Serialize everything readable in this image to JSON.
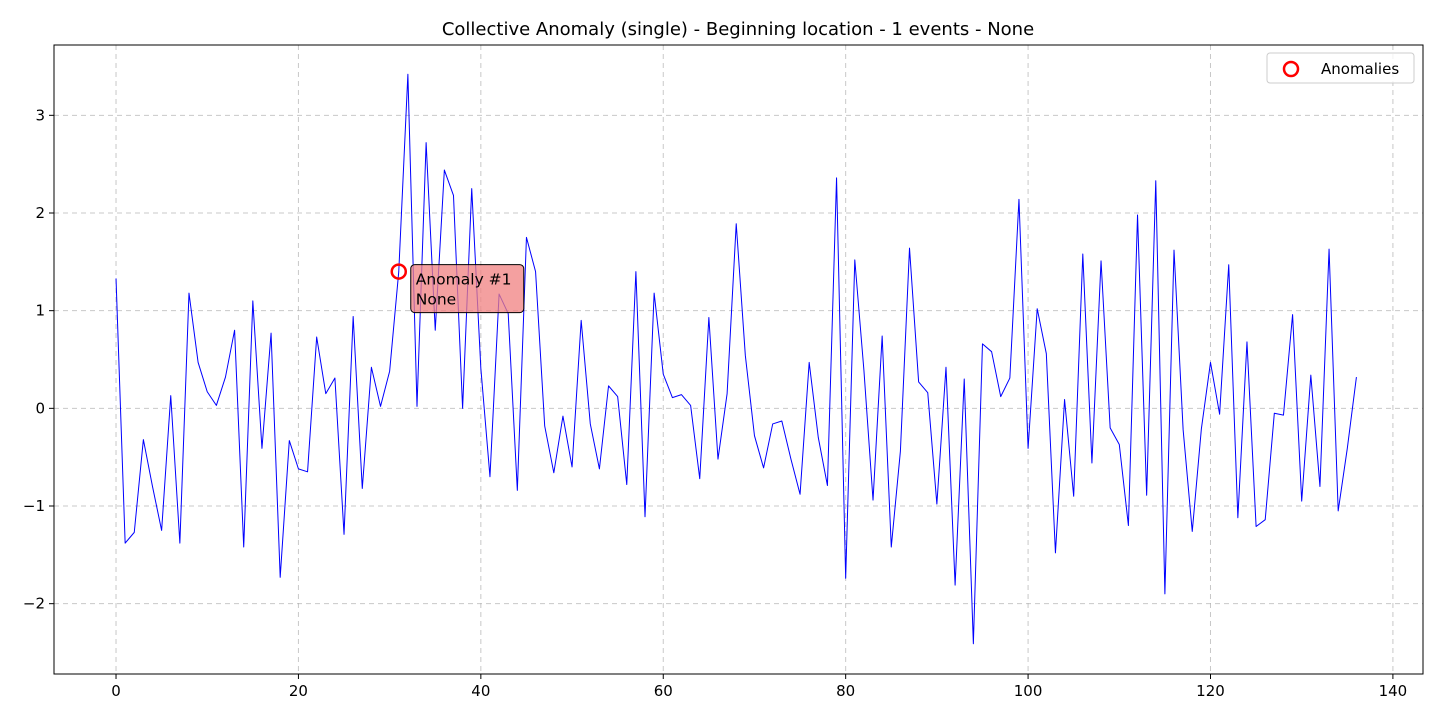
{
  "chart_data": {
    "type": "line",
    "title": "Collective Anomaly (single) - Beginning location - 1 events - None",
    "xlabel": "",
    "ylabel": "",
    "xlim": [
      -6.8,
      143.3
    ],
    "ylim": [
      -2.72,
      3.72
    ],
    "xticks": [
      0,
      20,
      40,
      60,
      80,
      100,
      120,
      140
    ],
    "yticks": [
      -2,
      -1,
      0,
      1,
      2,
      3
    ],
    "xtick_labels": [
      "0",
      "20",
      "40",
      "60",
      "80",
      "100",
      "120",
      "140"
    ],
    "ytick_labels": [
      "−2",
      "−1",
      "0",
      "1",
      "2",
      "3"
    ],
    "grid": true,
    "legend_position": "top-right",
    "series": [
      {
        "color": "#0000ff",
        "x": [
          0,
          1,
          2,
          3,
          4,
          5,
          6,
          7,
          8,
          9,
          10,
          11,
          12,
          13,
          14,
          15,
          16,
          17,
          18,
          19,
          20,
          21,
          22,
          23,
          24,
          25,
          26,
          27,
          28,
          29,
          30,
          31,
          32,
          33,
          34,
          35,
          36,
          37,
          38,
          39,
          40,
          41,
          42,
          43,
          44,
          45,
          46,
          47,
          48,
          49,
          50,
          51,
          52,
          53,
          54,
          55,
          56,
          57,
          58,
          59,
          60,
          61,
          62,
          63,
          64,
          65,
          66,
          67,
          68,
          69,
          70,
          71,
          72,
          73,
          74,
          75,
          76,
          77,
          78,
          79,
          80,
          81,
          82,
          83,
          84,
          85,
          86,
          87,
          88,
          89,
          90,
          91,
          92,
          93,
          94,
          95,
          96,
          97,
          98,
          99,
          100,
          101,
          102,
          103,
          104,
          105,
          106,
          107,
          108,
          109,
          110,
          111,
          112,
          113,
          114,
          115,
          116,
          117,
          118,
          119,
          120,
          121,
          122,
          123,
          124,
          125,
          126,
          127,
          128,
          129,
          130,
          131,
          132,
          133,
          134,
          135,
          136
        ],
        "values": [
          1.33,
          -1.38,
          -1.27,
          -0.32,
          -0.8,
          -1.25,
          0.13,
          -1.38,
          1.18,
          0.47,
          0.17,
          0.03,
          0.32,
          0.8,
          -1.42,
          1.1,
          -0.41,
          0.77,
          -1.73,
          -0.33,
          -0.62,
          -0.65,
          0.73,
          0.15,
          0.31,
          -1.29,
          0.94,
          -0.82,
          0.42,
          0.02,
          0.38,
          1.4,
          3.42,
          0.02,
          2.72,
          0.8,
          2.44,
          2.18,
          0.0,
          2.25,
          0.41,
          -0.7,
          1.17,
          0.97,
          -0.84,
          1.75,
          1.4,
          -0.18,
          -0.66,
          -0.08,
          -0.6,
          0.9,
          -0.16,
          -0.62,
          0.23,
          0.12,
          -0.78,
          1.4,
          -1.11,
          1.18,
          0.35,
          0.11,
          0.14,
          0.03,
          -0.72,
          0.93,
          -0.52,
          0.15,
          1.89,
          0.54,
          -0.28,
          -0.61,
          -0.16,
          -0.13,
          -0.52,
          -0.88,
          0.47,
          -0.3,
          -0.79,
          2.36,
          -1.74,
          1.52,
          0.39,
          -0.94,
          0.74,
          -1.42,
          -0.44,
          1.64,
          0.27,
          0.16,
          -0.98,
          0.42,
          -1.81,
          0.3,
          -2.41,
          0.66,
          0.58,
          0.12,
          0.31,
          2.14,
          -0.41,
          1.02,
          0.56,
          -1.48,
          0.09,
          -0.9,
          1.58,
          -0.56,
          1.51,
          -0.2,
          -0.37,
          -1.2,
          1.98,
          -0.89,
          2.33,
          -1.9,
          1.62,
          -0.22,
          -1.26,
          -0.21,
          0.47,
          -0.06,
          1.47,
          -1.12,
          0.68,
          -1.21,
          -1.14,
          -0.05,
          -0.07,
          0.96,
          -0.95,
          0.34,
          -0.8,
          1.63,
          -1.05,
          -0.41,
          0.32
        ]
      }
    ],
    "anomalies": {
      "legend_label": "Anomalies",
      "marker_color": "#ff0000",
      "points": [
        {
          "x": 31,
          "y": 1.4,
          "label_line1": "Anomaly #1",
          "label_line2": "None"
        }
      ]
    },
    "annotation_box_color": "#f08080"
  }
}
